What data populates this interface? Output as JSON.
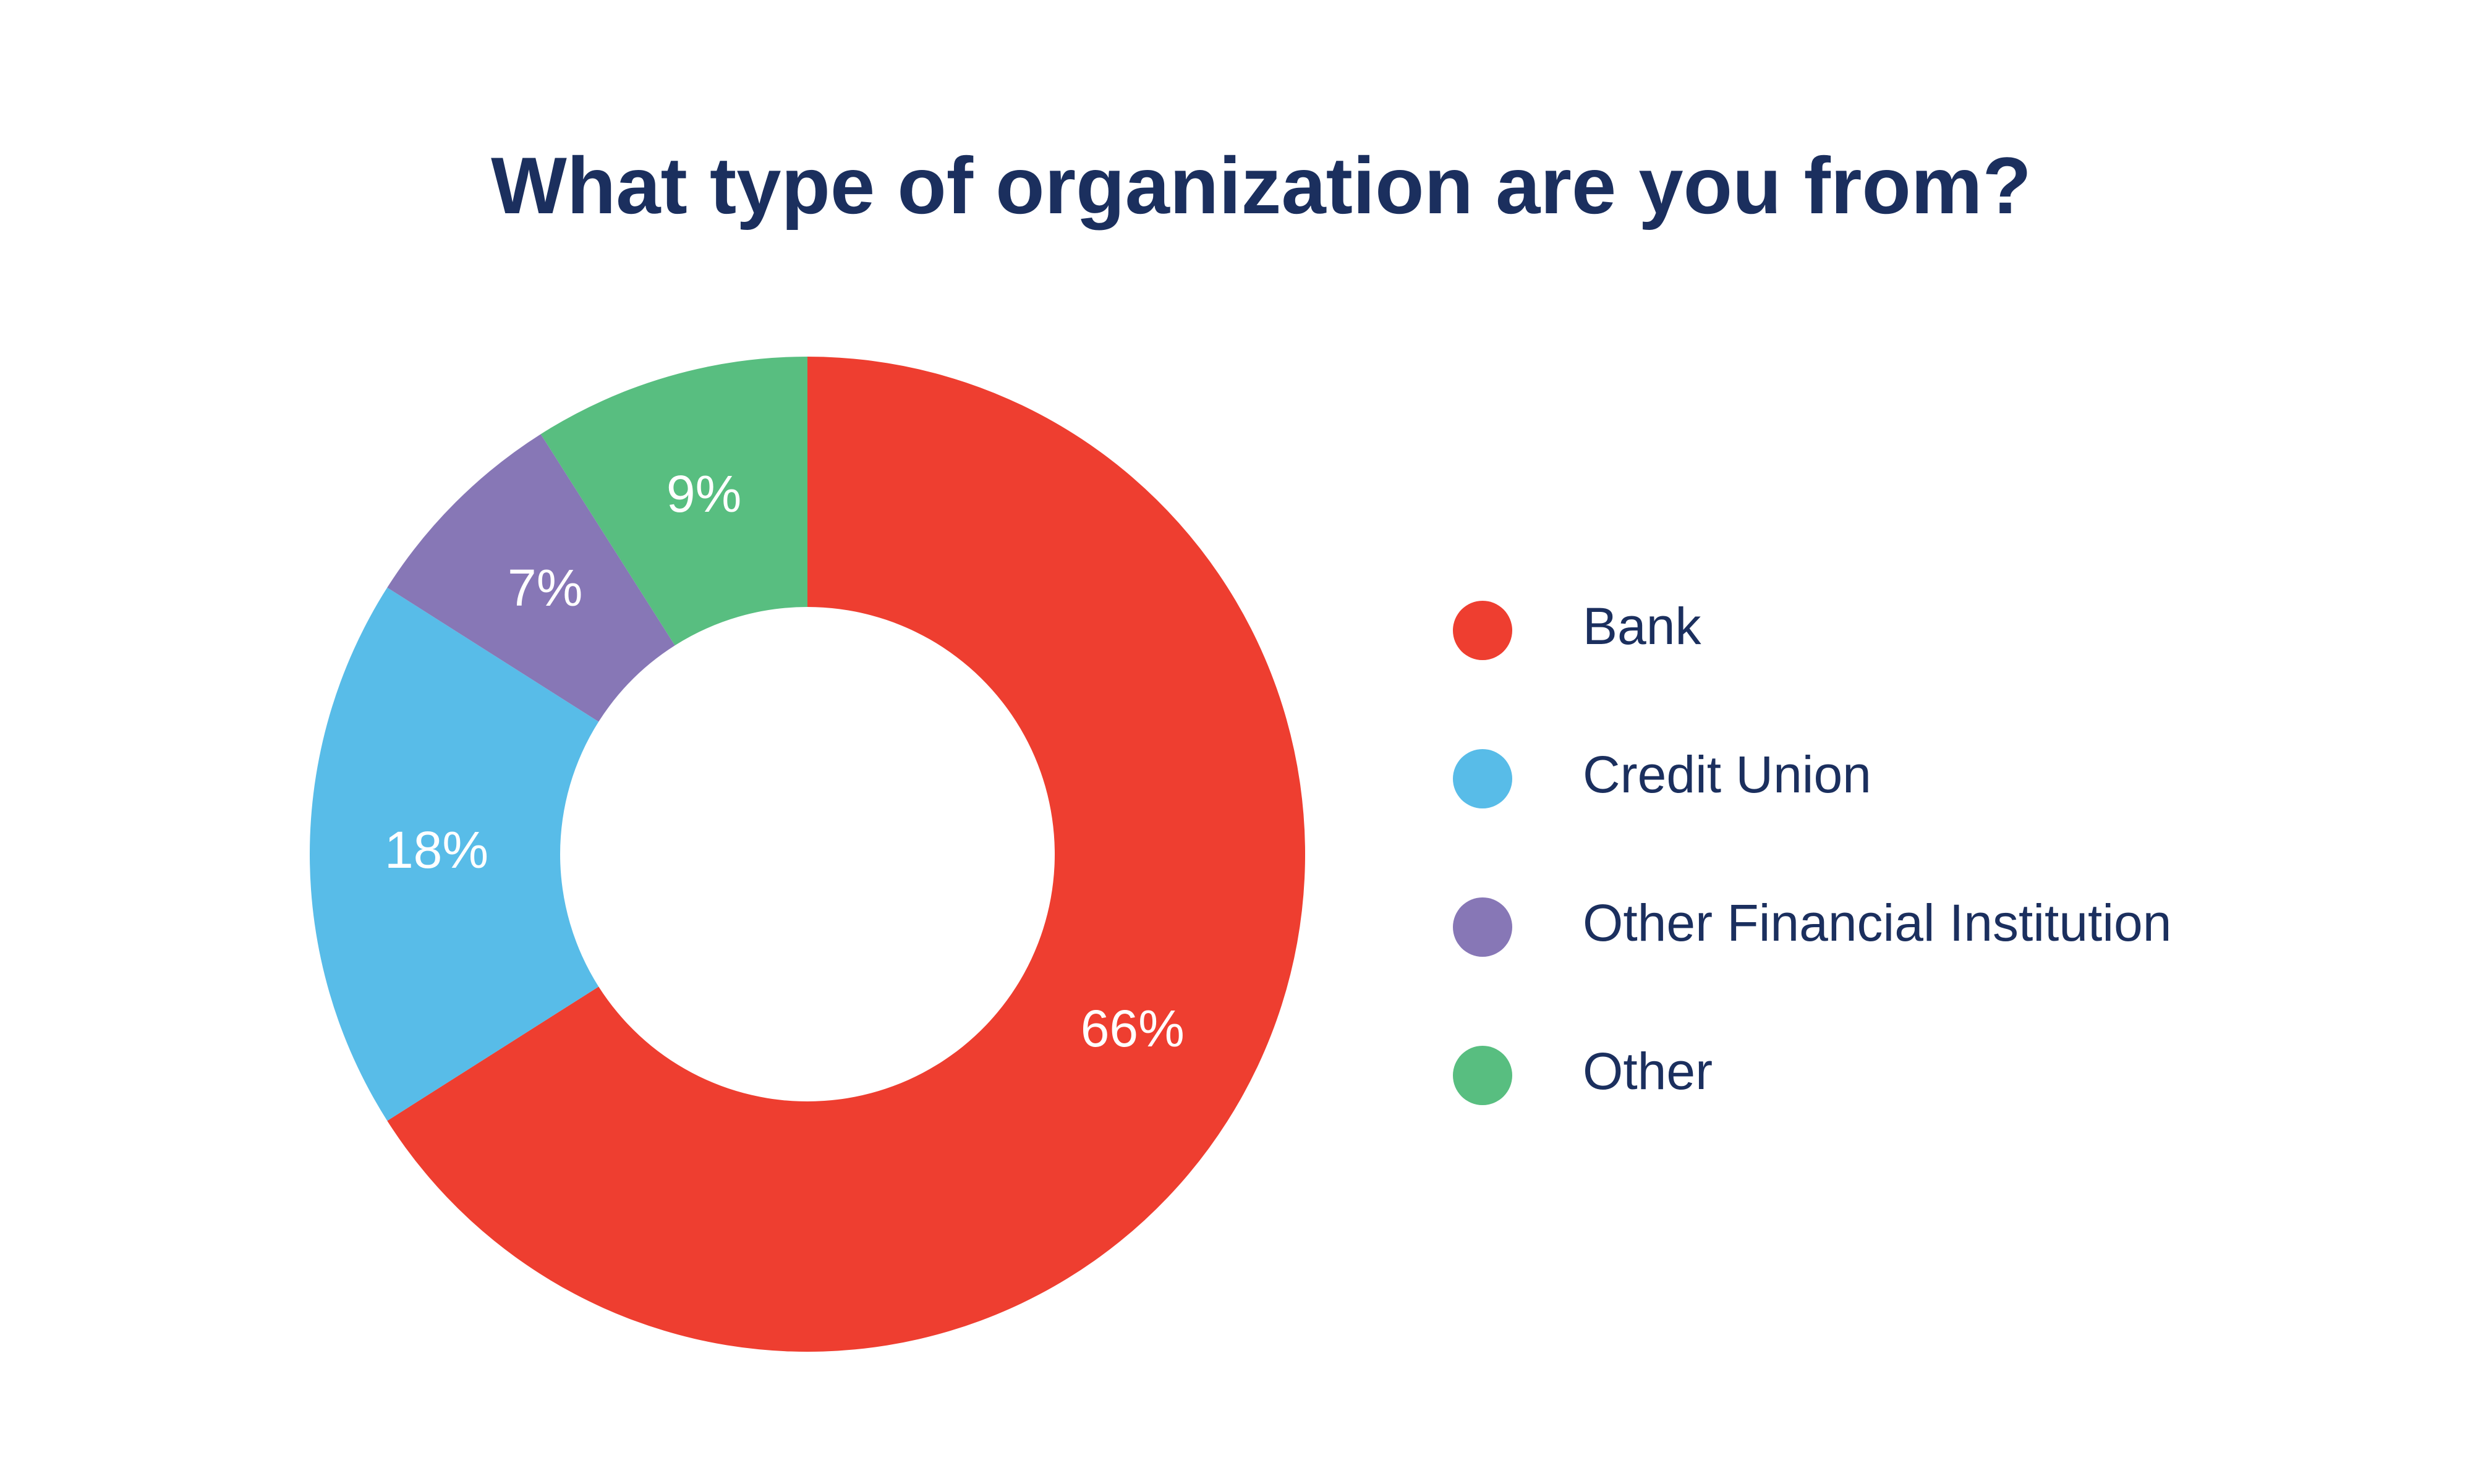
{
  "chart_data": {
    "type": "pie",
    "title": "What type of organization are you from?",
    "donut": true,
    "slices": [
      {
        "label": "Bank",
        "value": 66,
        "display": "66%",
        "color": "#ee3e30"
      },
      {
        "label": "Credit Union",
        "value": 18,
        "display": "18%",
        "color": "#58bce8"
      },
      {
        "label": "Other Financial Institution",
        "value": 7,
        "display": "7%",
        "color": "#8777b6"
      },
      {
        "label": "Other",
        "value": 9,
        "display": "9%",
        "color": "#58be80"
      }
    ],
    "legend_position": "right",
    "title_color": "#1b2f5e",
    "legend_text_color": "#1b2f5e",
    "label_color": "#ffffff"
  }
}
